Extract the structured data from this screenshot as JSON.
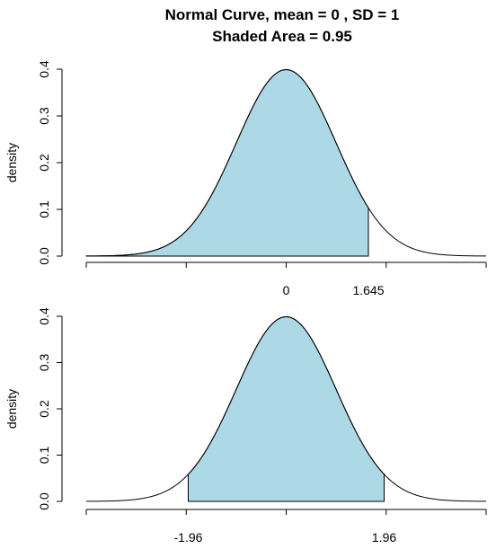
{
  "title": {
    "line1": "Normal Curve, mean =  0 , SD =  1",
    "line2": "Shaded Area =  0.95"
  },
  "colors": {
    "fill": "#add8e6",
    "line": "#000000"
  },
  "chart_data": [
    {
      "type": "area",
      "distribution": "normal",
      "mean": 0,
      "sd": 1,
      "shaded_area": 0.95,
      "shade_from": -4,
      "shade_to": 1.645,
      "xlim": [
        -4,
        4
      ],
      "ylim": [
        0,
        0.4
      ],
      "ylabel": "density",
      "yticks": [
        0.0,
        0.1,
        0.2,
        0.3,
        0.4
      ],
      "ytick_labels": [
        "0.0",
        "0.1",
        "0.2",
        "0.3",
        "0.4"
      ],
      "xticks": [
        -4,
        -2,
        0,
        2,
        4
      ],
      "xtick_labels": [
        {
          "value": 0,
          "label": "0"
        },
        {
          "value": 1.645,
          "label": "1.645"
        }
      ]
    },
    {
      "type": "area",
      "distribution": "normal",
      "mean": 0,
      "sd": 1,
      "shaded_area": 0.95,
      "shade_from": -1.96,
      "shade_to": 1.96,
      "xlim": [
        -4,
        4
      ],
      "ylim": [
        0,
        0.4
      ],
      "ylabel": "density",
      "yticks": [
        0.0,
        0.1,
        0.2,
        0.3,
        0.4
      ],
      "ytick_labels": [
        "0.0",
        "0.1",
        "0.2",
        "0.3",
        "0.4"
      ],
      "xticks": [
        -4,
        -2,
        0,
        2,
        4
      ],
      "xtick_labels": [
        {
          "value": -1.96,
          "label": "-1.96"
        },
        {
          "value": 1.96,
          "label": "1.96"
        }
      ]
    }
  ]
}
